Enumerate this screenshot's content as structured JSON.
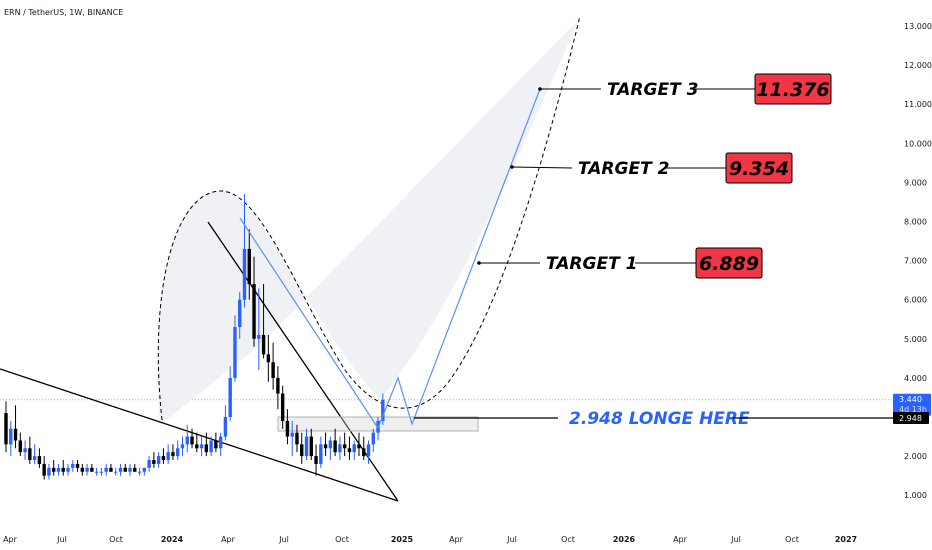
{
  "header": {
    "title": "ERN / TetherUS, 1W, BINANCE"
  },
  "colors": {
    "bull": "#2962ff",
    "bear": "#000000",
    "target_box": "#f23645",
    "entry_text": "#2962ff",
    "projection": "#5b8ff9",
    "shade": "#f0f1f4"
  },
  "chart_data": {
    "type": "candlestick",
    "x_axis": {
      "ticks": [
        "Apr",
        "Jul",
        "Oct",
        "2024",
        "Apr",
        "Jul",
        "Oct",
        "2025",
        "Apr",
        "Jul",
        "Oct",
        "2026",
        "Apr",
        "Jul",
        "Oct",
        "2027"
      ]
    },
    "y_axis": {
      "range": [
        0.6,
        13.3
      ],
      "ticks": [
        "13.000",
        "12.000",
        "11.000",
        "10.000",
        "9.000",
        "8.000",
        "7.000",
        "6.000",
        "5.000",
        "4.000",
        "3.000",
        "2.000",
        "1.000"
      ]
    },
    "current_price": {
      "value": "3.440",
      "countdown": "4d 13h"
    },
    "entry": {
      "label": "2.948 LONGE HERE",
      "price_badge": "2.948",
      "value": 2.948
    },
    "targets": [
      {
        "label": "TARGET 1",
        "value": "6.889"
      },
      {
        "label": "TARGET 2",
        "value": "9.354"
      },
      {
        "label": "TARGET 3",
        "value": "11.376"
      }
    ],
    "candles": [
      [
        3.1,
        3.4,
        2.1,
        2.3
      ],
      [
        2.3,
        2.9,
        2.0,
        2.7
      ],
      [
        2.7,
        3.3,
        2.2,
        2.4
      ],
      [
        2.4,
        2.6,
        2.0,
        2.1
      ],
      [
        2.1,
        2.4,
        1.9,
        2.2
      ],
      [
        2.2,
        2.5,
        1.8,
        1.9
      ],
      [
        1.9,
        2.3,
        1.8,
        2.0
      ],
      [
        2.0,
        2.2,
        1.7,
        1.8
      ],
      [
        1.8,
        2.0,
        1.4,
        1.5
      ],
      [
        1.5,
        1.8,
        1.4,
        1.7
      ],
      [
        1.7,
        1.9,
        1.5,
        1.6
      ],
      [
        1.6,
        1.8,
        1.5,
        1.7
      ],
      [
        1.7,
        1.9,
        1.5,
        1.6
      ],
      [
        1.6,
        1.8,
        1.5,
        1.7
      ],
      [
        1.7,
        1.9,
        1.6,
        1.8
      ],
      [
        1.8,
        1.9,
        1.6,
        1.7
      ],
      [
        1.7,
        1.8,
        1.5,
        1.6
      ],
      [
        1.6,
        1.8,
        1.5,
        1.7
      ],
      [
        1.7,
        1.8,
        1.6,
        1.6
      ],
      [
        1.6,
        1.7,
        1.5,
        1.6
      ],
      [
        1.6,
        1.7,
        1.5,
        1.6
      ],
      [
        1.6,
        1.8,
        1.5,
        1.7
      ],
      [
        1.7,
        1.8,
        1.6,
        1.6
      ],
      [
        1.6,
        1.7,
        1.5,
        1.6
      ],
      [
        1.6,
        1.8,
        1.5,
        1.7
      ],
      [
        1.7,
        1.8,
        1.6,
        1.6
      ],
      [
        1.6,
        1.8,
        1.5,
        1.7
      ],
      [
        1.7,
        1.8,
        1.6,
        1.6
      ],
      [
        1.6,
        1.7,
        1.5,
        1.6
      ],
      [
        1.6,
        1.7,
        1.5,
        1.7
      ],
      [
        1.7,
        2.0,
        1.6,
        1.9
      ],
      [
        1.9,
        2.1,
        1.7,
        1.8
      ],
      [
        1.8,
        2.1,
        1.7,
        2.0
      ],
      [
        2.0,
        2.2,
        1.8,
        1.9
      ],
      [
        1.9,
        2.3,
        1.8,
        2.1
      ],
      [
        2.1,
        2.3,
        1.9,
        2.0
      ],
      [
        2.0,
        2.4,
        1.9,
        2.2
      ],
      [
        2.2,
        2.5,
        2.0,
        2.3
      ],
      [
        2.3,
        2.8,
        2.1,
        2.5
      ],
      [
        2.5,
        2.7,
        2.2,
        2.3
      ],
      [
        2.3,
        2.6,
        2.1,
        2.2
      ],
      [
        2.2,
        2.5,
        2.0,
        2.3
      ],
      [
        2.3,
        2.6,
        2.0,
        2.1
      ],
      [
        2.1,
        2.5,
        2.0,
        2.4
      ],
      [
        2.4,
        2.6,
        2.1,
        2.2
      ],
      [
        2.2,
        2.6,
        2.0,
        2.5
      ],
      [
        2.5,
        3.3,
        2.4,
        3.0
      ],
      [
        3.0,
        4.3,
        2.9,
        4.0
      ],
      [
        4.0,
        5.6,
        3.9,
        5.3
      ],
      [
        5.3,
        6.2,
        5.0,
        6.0
      ],
      [
        6.0,
        8.7,
        5.8,
        7.3
      ],
      [
        7.3,
        7.8,
        6.0,
        6.4
      ],
      [
        6.4,
        7.1,
        4.8,
        5.0
      ],
      [
        5.0,
        6.3,
        4.2,
        5.1
      ],
      [
        5.1,
        6.4,
        4.5,
        4.6
      ],
      [
        4.6,
        5.1,
        3.9,
        4.4
      ],
      [
        4.4,
        4.9,
        3.7,
        4.0
      ],
      [
        4.0,
        4.3,
        3.2,
        3.6
      ],
      [
        3.6,
        3.8,
        2.7,
        2.9
      ],
      [
        2.9,
        3.2,
        2.3,
        2.5
      ],
      [
        2.5,
        2.9,
        2.0,
        2.6
      ],
      [
        2.6,
        2.8,
        2.1,
        2.3
      ],
      [
        2.3,
        2.6,
        1.8,
        2.0
      ],
      [
        2.0,
        2.7,
        1.9,
        2.5
      ],
      [
        2.5,
        2.7,
        1.9,
        2.0
      ],
      [
        2.0,
        2.3,
        1.5,
        1.8
      ],
      [
        1.8,
        2.5,
        1.7,
        2.3
      ],
      [
        2.3,
        2.6,
        2.0,
        2.2
      ],
      [
        2.2,
        2.5,
        1.9,
        2.4
      ],
      [
        2.4,
        2.7,
        2.0,
        2.1
      ],
      [
        2.1,
        2.5,
        1.9,
        2.3
      ],
      [
        2.3,
        2.6,
        2.0,
        2.2
      ],
      [
        2.2,
        2.5,
        1.9,
        2.1
      ],
      [
        2.1,
        2.4,
        1.9,
        2.3
      ],
      [
        2.3,
        2.6,
        2.0,
        2.2
      ],
      [
        2.2,
        2.5,
        1.9,
        2.0
      ],
      [
        2.0,
        2.4,
        1.8,
        2.3
      ],
      [
        2.3,
        2.7,
        2.1,
        2.6
      ],
      [
        2.6,
        3.0,
        2.4,
        2.9
      ],
      [
        2.9,
        3.6,
        2.8,
        3.44
      ]
    ]
  }
}
